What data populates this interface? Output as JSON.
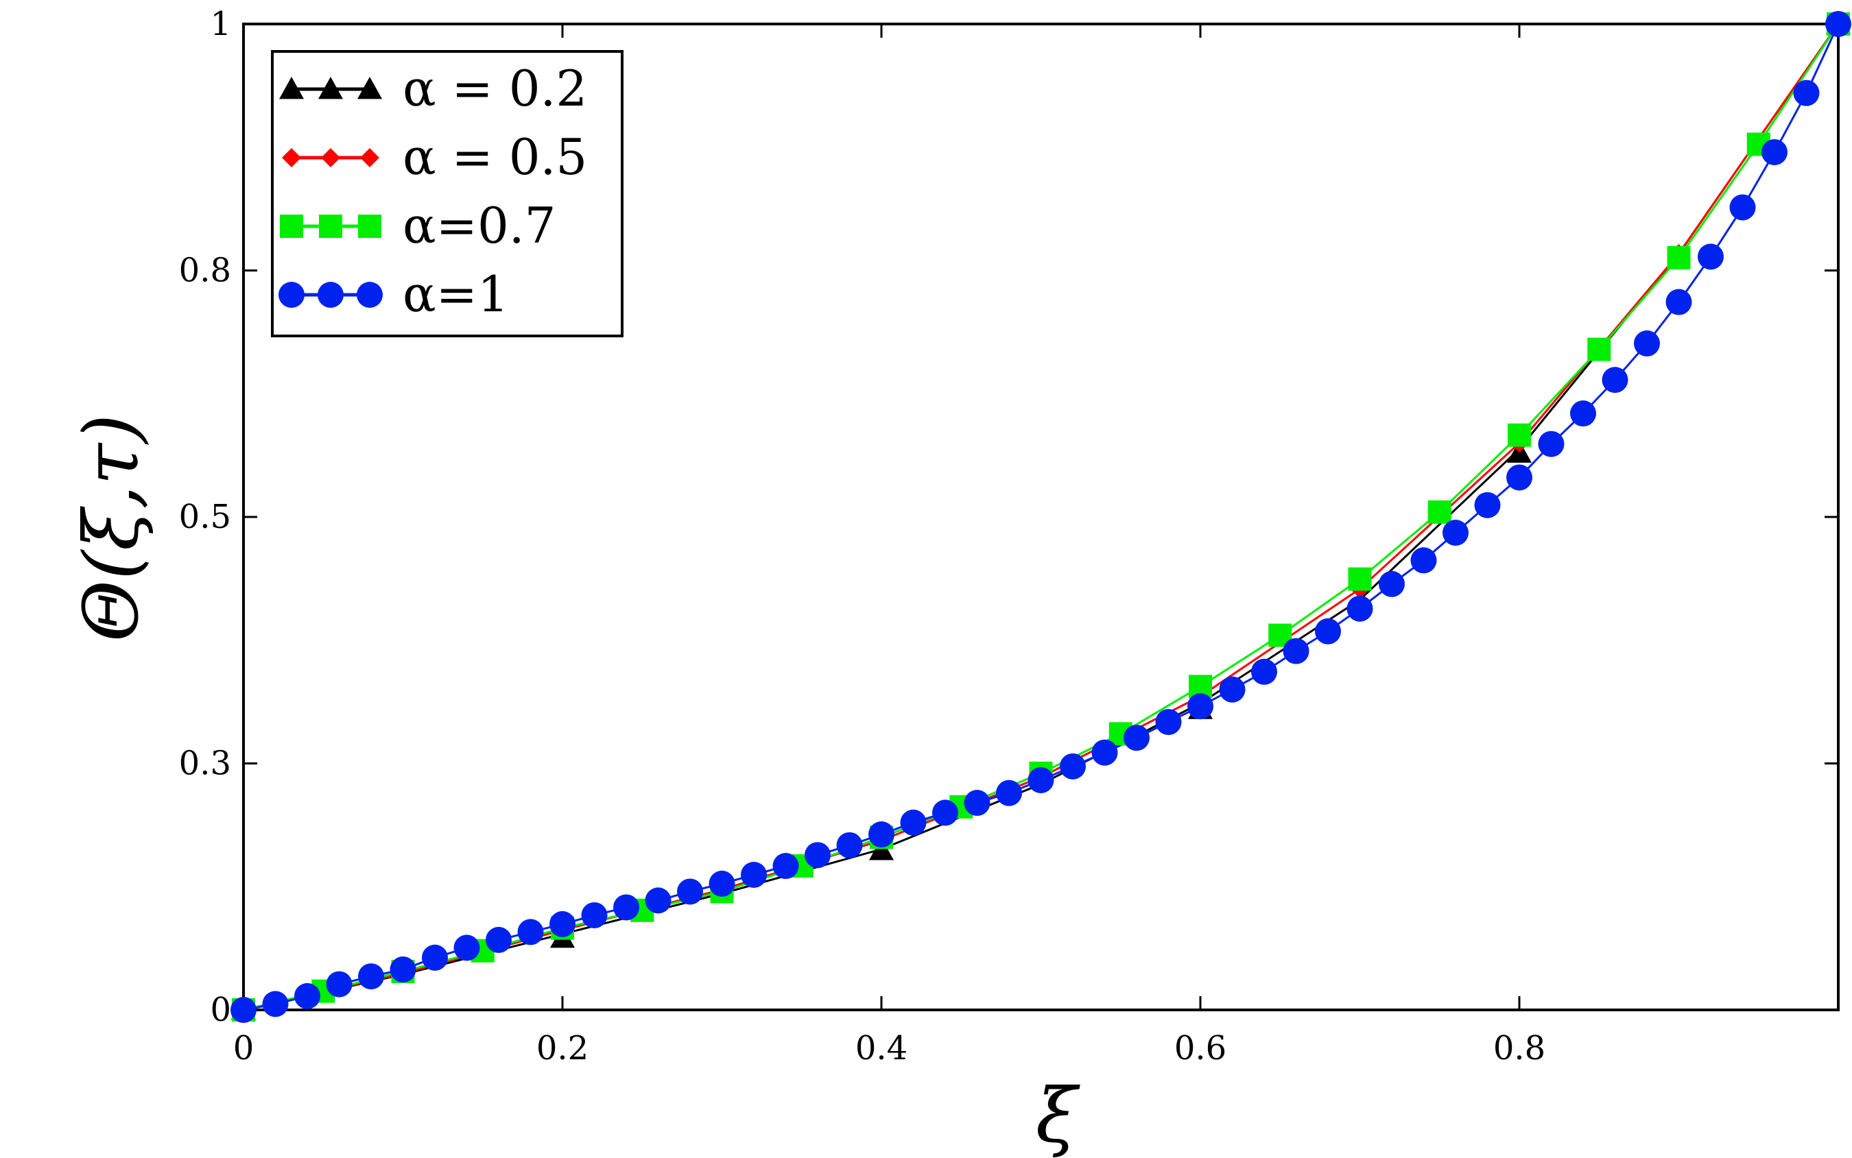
{
  "chart_data": {
    "type": "line",
    "title": "",
    "xlabel": "ξ",
    "ylabel": "Θ(ξ,τ)",
    "xlim": [
      0,
      1
    ],
    "ylim": [
      0,
      1
    ],
    "x_ticks": [
      0,
      0.2,
      0.4,
      0.6,
      0.8
    ],
    "x_tick_labels": [
      "0",
      "0.2",
      "0.4",
      "0.6",
      "0.8"
    ],
    "y_ticks": [
      0,
      0.25,
      0.5,
      0.75,
      1
    ],
    "y_tick_labels": [
      "0",
      "0.3",
      "0.5",
      "0.8",
      "1"
    ],
    "grid": false,
    "legend_position": "top-left",
    "series": [
      {
        "name": "α = 0.2",
        "color": "#000000",
        "marker": "triangle",
        "x": [
          0,
          0.2,
          0.4,
          0.6,
          0.8,
          1.0
        ],
        "y": [
          0.0,
          0.073,
          0.162,
          0.305,
          0.565,
          1.0
        ],
        "curve_x": [
          0,
          0.1,
          0.2,
          0.3,
          0.4,
          0.5,
          0.6,
          0.7,
          0.8,
          0.9,
          1.0
        ],
        "curve_y": [
          0.0,
          0.036,
          0.077,
          0.118,
          0.163,
          0.229,
          0.311,
          0.416,
          0.569,
          0.767,
          1.0
        ]
      },
      {
        "name": "α = 0.5",
        "color": "#ff0000",
        "marker": "diamond",
        "x": [
          0,
          0.1,
          0.2,
          0.3,
          0.4,
          0.5,
          0.6,
          0.7,
          0.8,
          0.9,
          1.0
        ],
        "y": [
          0.0,
          0.037,
          0.081,
          0.122,
          0.172,
          0.236,
          0.318,
          0.427,
          0.575,
          0.767,
          1.0
        ]
      },
      {
        "name": "α=0.7",
        "color": "#00ee00",
        "marker": "square",
        "x": [
          0,
          0.05,
          0.1,
          0.15,
          0.2,
          0.25,
          0.3,
          0.35,
          0.4,
          0.45,
          0.5,
          0.55,
          0.6,
          0.65,
          0.7,
          0.75,
          0.8,
          0.85,
          0.9,
          0.95,
          1.0
        ],
        "y": [
          0.0,
          0.019,
          0.039,
          0.06,
          0.083,
          0.101,
          0.12,
          0.146,
          0.175,
          0.206,
          0.24,
          0.28,
          0.328,
          0.38,
          0.437,
          0.505,
          0.583,
          0.67,
          0.763,
          0.878,
          1.0
        ]
      },
      {
        "name": "α=1",
        "color": "#0022ee",
        "marker": "circle",
        "x": [
          0,
          0.02,
          0.04,
          0.06,
          0.08,
          0.1,
          0.12,
          0.14,
          0.16,
          0.18,
          0.2,
          0.22,
          0.24,
          0.26,
          0.28,
          0.3,
          0.32,
          0.34,
          0.36,
          0.38,
          0.4,
          0.42,
          0.44,
          0.46,
          0.48,
          0.5,
          0.52,
          0.54,
          0.56,
          0.58,
          0.6,
          0.62,
          0.64,
          0.66,
          0.68,
          0.7,
          0.72,
          0.74,
          0.76,
          0.78,
          0.8,
          0.82,
          0.84,
          0.86,
          0.88,
          0.9,
          0.92,
          0.94,
          0.96,
          0.98,
          1.0
        ],
        "y": [
          0.0,
          0.006,
          0.014,
          0.026,
          0.034,
          0.041,
          0.053,
          0.063,
          0.071,
          0.079,
          0.087,
          0.096,
          0.104,
          0.111,
          0.12,
          0.128,
          0.137,
          0.146,
          0.157,
          0.167,
          0.178,
          0.19,
          0.2,
          0.21,
          0.22,
          0.233,
          0.247,
          0.261,
          0.276,
          0.292,
          0.308,
          0.325,
          0.343,
          0.364,
          0.384,
          0.407,
          0.432,
          0.456,
          0.484,
          0.512,
          0.54,
          0.574,
          0.605,
          0.639,
          0.676,
          0.718,
          0.764,
          0.814,
          0.87,
          0.93,
          1.0
        ]
      }
    ]
  }
}
